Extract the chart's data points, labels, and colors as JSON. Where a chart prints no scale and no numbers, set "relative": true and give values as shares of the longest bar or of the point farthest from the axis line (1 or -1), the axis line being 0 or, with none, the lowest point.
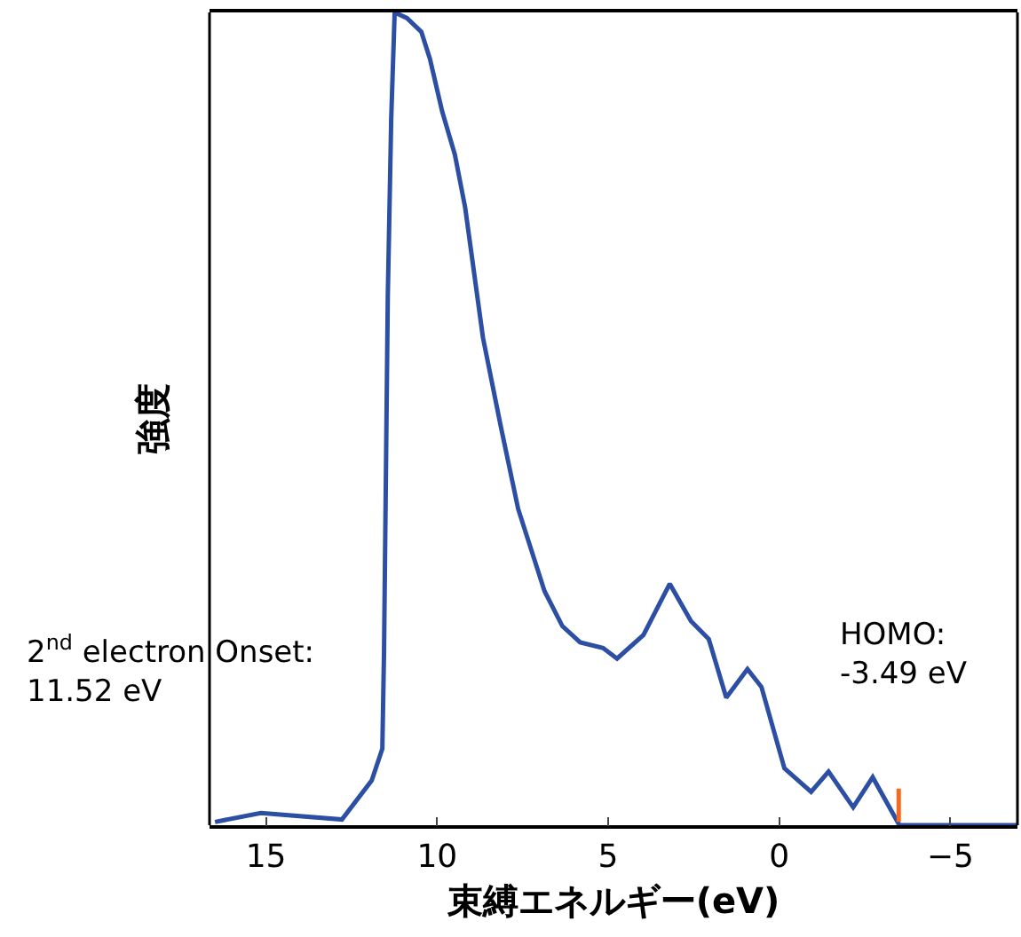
{
  "chart_data": {
    "type": "line",
    "relative": true,
    "xlabel": "束縛エネルギー(eV)",
    "ylabel": "強度",
    "xlim": [
      16.65,
      -6.96
    ],
    "xticks": [
      {
        "value": 15,
        "label": "15"
      },
      {
        "value": 10,
        "label": "10"
      },
      {
        "value": 5,
        "label": "5"
      },
      {
        "value": 0,
        "label": "0"
      },
      {
        "value": -5,
        "label": "−5"
      }
    ],
    "series": [
      {
        "color": "#2c4ea3",
        "x": [
          16.49,
          15.15,
          12.78,
          11.91,
          11.6,
          11.55,
          11.44,
          11.34,
          11.24,
          10.88,
          10.46,
          10.21,
          9.85,
          9.48,
          9.18,
          8.66,
          8.14,
          7.63,
          6.86,
          6.34,
          5.82,
          5.15,
          4.74,
          3.97,
          3.2,
          2.58,
          2.06,
          1.55,
          0.93,
          0.52,
          -0.15,
          -0.93,
          -1.44,
          -2.16,
          -2.73,
          -3.51,
          -6.96
        ],
        "values": [
          0.004,
          0.015,
          0.007,
          0.055,
          0.094,
          0.214,
          0.651,
          0.87,
          1.0,
          0.993,
          0.976,
          0.943,
          0.878,
          0.825,
          0.76,
          0.6,
          0.491,
          0.389,
          0.288,
          0.245,
          0.225,
          0.218,
          0.205,
          0.234,
          0.297,
          0.251,
          0.229,
          0.157,
          0.192,
          0.17,
          0.07,
          0.041,
          0.066,
          0.022,
          0.059,
          0.0,
          0.0
        ]
      },
      {
        "type": "line",
        "color": "#f26b21",
        "x": [
          -3.49,
          -3.49
        ],
        "values": [
          0.004,
          0.045
        ]
      }
    ],
    "annotations": [
      "2$^{nd}$ electron Onset:\n11.52 eV",
      "HOMO:\n-3.49 eV"
    ],
    "marker": "none",
    "line_style": "solid"
  }
}
